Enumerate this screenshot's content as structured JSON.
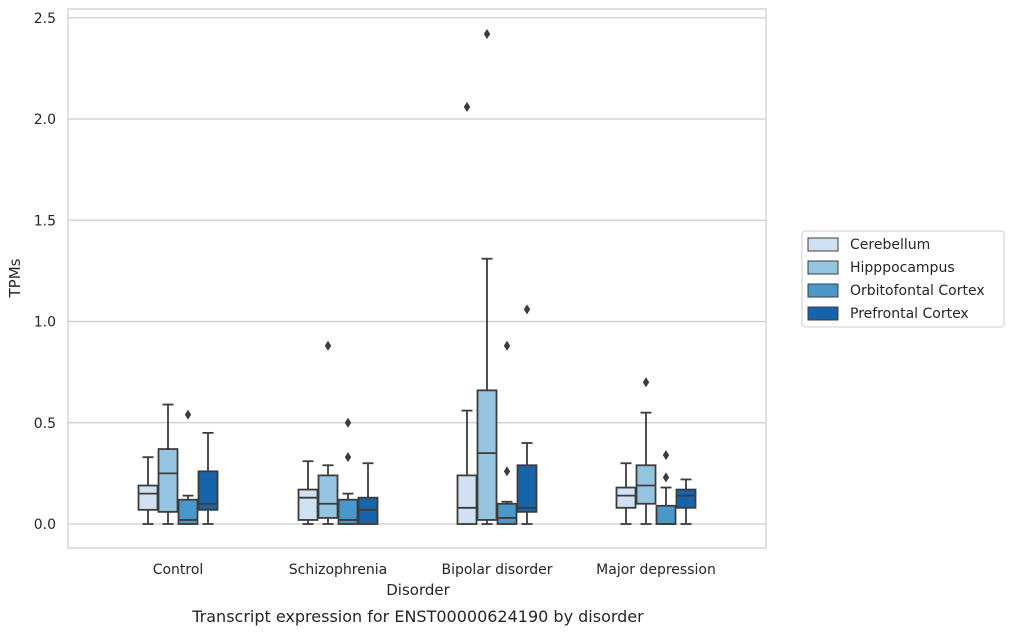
{
  "chart_data": {
    "type": "box",
    "title": "",
    "caption": "Transcript expression for ENST00000624190 by disorder",
    "xlabel": "Disorder",
    "ylabel": "TPMs",
    "ylim": [
      -0.12,
      2.55
    ],
    "yticks": [
      0.0,
      0.5,
      1.0,
      1.5,
      2.0,
      2.5
    ],
    "ytick_labels": [
      "0.0",
      "0.5",
      "1.0",
      "1.5",
      "2.0",
      "2.5"
    ],
    "grid": "horizontal",
    "legend_position": "right",
    "categories": [
      "Control",
      "Schizophrenia",
      "Bipolar disorder",
      "Major depression"
    ],
    "series": [
      {
        "name": "Cerebellum",
        "color": "#d0e1f2",
        "boxes": [
          {
            "whislo": 0.0,
            "q1": 0.07,
            "med": 0.15,
            "q3": 0.19,
            "whishi": 0.33,
            "fliers": []
          },
          {
            "whislo": 0.0,
            "q1": 0.02,
            "med": 0.13,
            "q3": 0.17,
            "whishi": 0.31,
            "fliers": []
          },
          {
            "whislo": 0.0,
            "q1": 0.0,
            "med": 0.08,
            "q3": 0.24,
            "whishi": 0.56,
            "fliers": [
              2.06
            ]
          },
          {
            "whislo": 0.0,
            "q1": 0.08,
            "med": 0.14,
            "q3": 0.18,
            "whishi": 0.3,
            "fliers": []
          }
        ]
      },
      {
        "name": "Hipppocampus",
        "color": "#94c4df",
        "boxes": [
          {
            "whislo": 0.0,
            "q1": 0.06,
            "med": 0.25,
            "q3": 0.37,
            "whishi": 0.59,
            "fliers": []
          },
          {
            "whislo": 0.0,
            "q1": 0.03,
            "med": 0.1,
            "q3": 0.24,
            "whishi": 0.29,
            "fliers": [
              0.88
            ]
          },
          {
            "whislo": 0.0,
            "q1": 0.02,
            "med": 0.35,
            "q3": 0.66,
            "whishi": 1.31,
            "fliers": [
              2.42
            ]
          },
          {
            "whislo": 0.0,
            "q1": 0.1,
            "med": 0.19,
            "q3": 0.29,
            "whishi": 0.55,
            "fliers": [
              0.7
            ]
          }
        ]
      },
      {
        "name": "Orbitofontal Cortex",
        "color": "#4a98c9",
        "boxes": [
          {
            "whislo": 0.0,
            "q1": 0.0,
            "med": 0.02,
            "q3": 0.12,
            "whishi": 0.14,
            "fliers": [
              0.54
            ]
          },
          {
            "whislo": 0.0,
            "q1": 0.0,
            "med": 0.02,
            "q3": 0.12,
            "whishi": 0.15,
            "fliers": [
              0.33,
              0.5
            ]
          },
          {
            "whislo": 0.0,
            "q1": 0.0,
            "med": 0.03,
            "q3": 0.1,
            "whishi": 0.11,
            "fliers": [
              0.26,
              0.88
            ]
          },
          {
            "whislo": 0.0,
            "q1": 0.0,
            "med": 0.0,
            "q3": 0.09,
            "whishi": 0.18,
            "fliers": [
              0.23,
              0.34
            ]
          }
        ]
      },
      {
        "name": "Prefrontal Cortex",
        "color": "#1764ab",
        "boxes": [
          {
            "whislo": 0.0,
            "q1": 0.07,
            "med": 0.1,
            "q3": 0.26,
            "whishi": 0.45,
            "fliers": []
          },
          {
            "whislo": 0.0,
            "q1": 0.0,
            "med": 0.07,
            "q3": 0.13,
            "whishi": 0.3,
            "fliers": []
          },
          {
            "whislo": 0.0,
            "q1": 0.06,
            "med": 0.08,
            "q3": 0.29,
            "whishi": 0.4,
            "fliers": [
              1.06
            ]
          },
          {
            "whislo": 0.0,
            "q1": 0.08,
            "med": 0.14,
            "q3": 0.17,
            "whishi": 0.22,
            "fliers": []
          }
        ]
      }
    ]
  }
}
